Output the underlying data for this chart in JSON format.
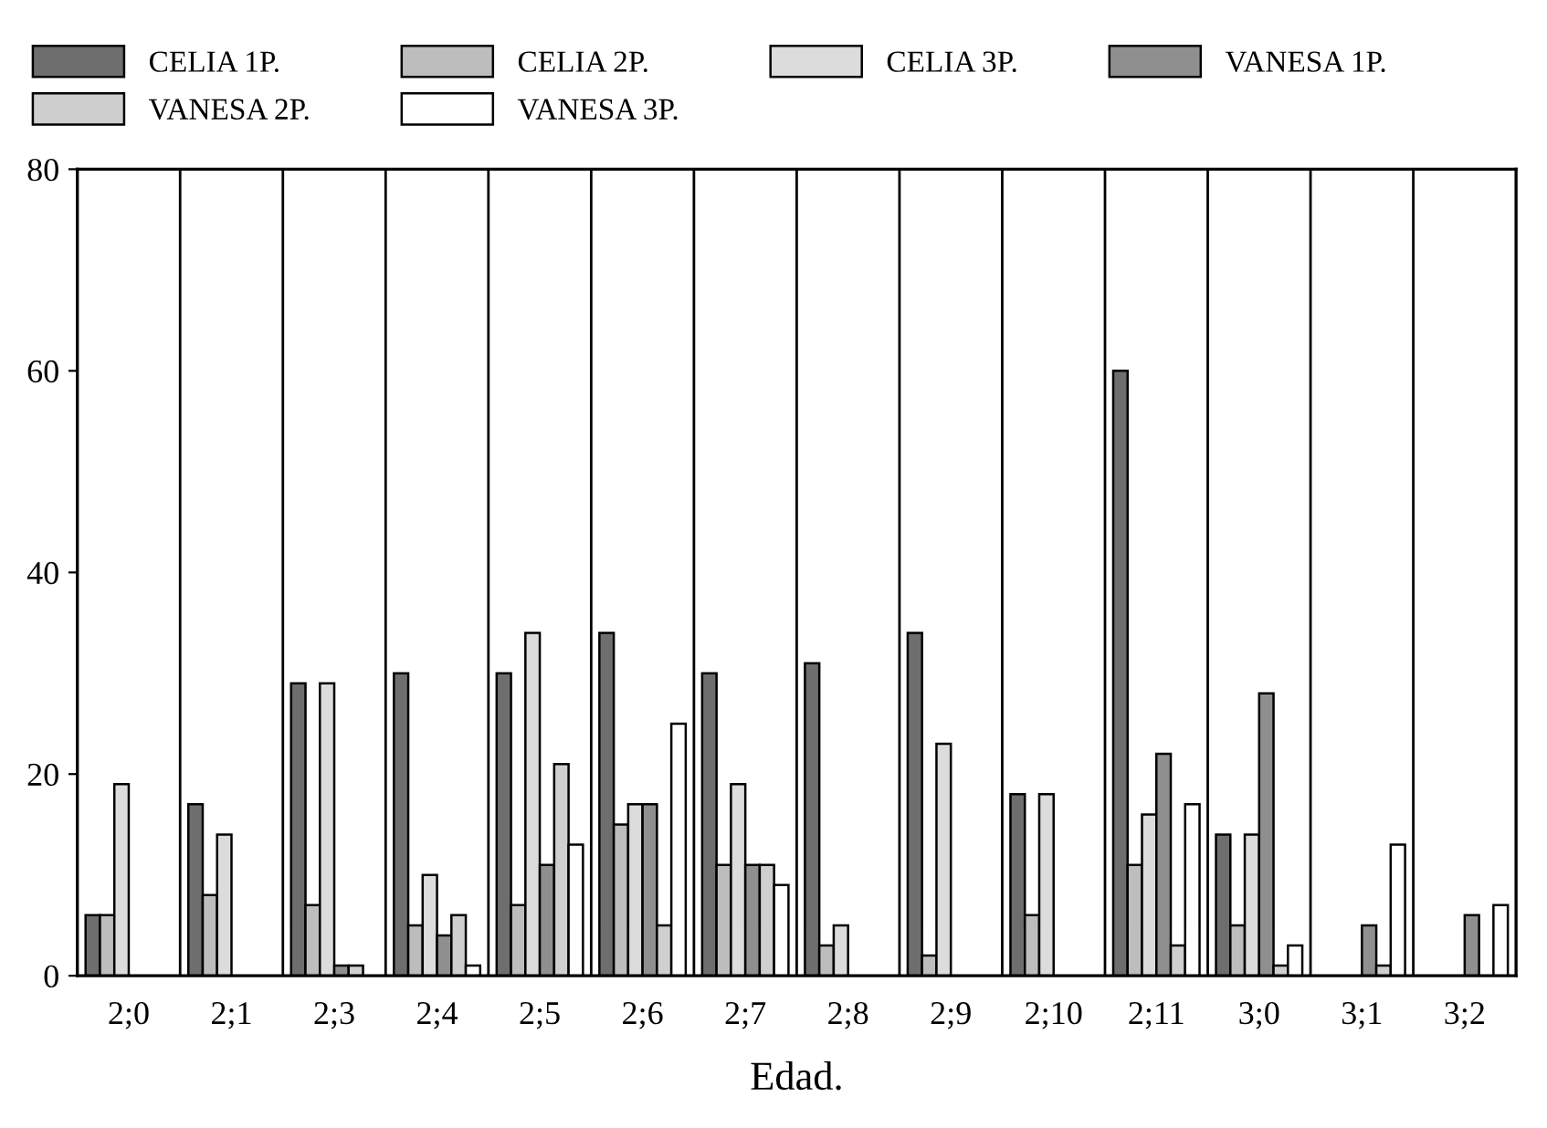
{
  "chart_data": {
    "type": "bar",
    "xlabel": "Edad.",
    "categories": [
      "2;0",
      "2;1",
      "2;3",
      "2;4",
      "2;5",
      "2;6",
      "2;7",
      "2;8",
      "2;9",
      "2;10",
      "2;11",
      "3;0",
      "3;1",
      "3;2"
    ],
    "series": [
      {
        "name": "CELIA 1P.",
        "color": "#6e6e6e",
        "values": [
          6,
          17,
          29,
          30,
          30,
          34,
          30,
          31,
          34,
          18,
          60,
          14,
          0,
          0
        ]
      },
      {
        "name": "CELIA 2P.",
        "color": "#bdbdbd",
        "values": [
          6,
          8,
          7,
          5,
          7,
          15,
          11,
          3,
          2,
          6,
          11,
          5,
          0,
          0
        ]
      },
      {
        "name": "CELIA 3P.",
        "color": "#dcdcdc",
        "values": [
          19,
          14,
          29,
          10,
          34,
          17,
          19,
          5,
          23,
          18,
          16,
          14,
          0,
          0
        ]
      },
      {
        "name": "VANESA 1P.",
        "color": "#8f8f8f",
        "values": [
          0,
          0,
          1,
          4,
          11,
          17,
          11,
          0,
          0,
          0,
          22,
          28,
          5,
          6
        ]
      },
      {
        "name": "VANESA 2P.",
        "color": "#cfcfcf",
        "values": [
          0,
          0,
          1,
          6,
          21,
          5,
          11,
          0,
          0,
          0,
          3,
          1,
          1,
          0
        ]
      },
      {
        "name": "VANESA 3P.",
        "color": "#ffffff",
        "values": [
          0,
          0,
          0,
          1,
          13,
          25,
          9,
          0,
          0,
          0,
          17,
          3,
          13,
          7
        ]
      }
    ],
    "ylim": [
      0,
      80
    ],
    "yticks": [
      0,
      20,
      40,
      60,
      80
    ],
    "grid": "x",
    "legend": "top"
  }
}
